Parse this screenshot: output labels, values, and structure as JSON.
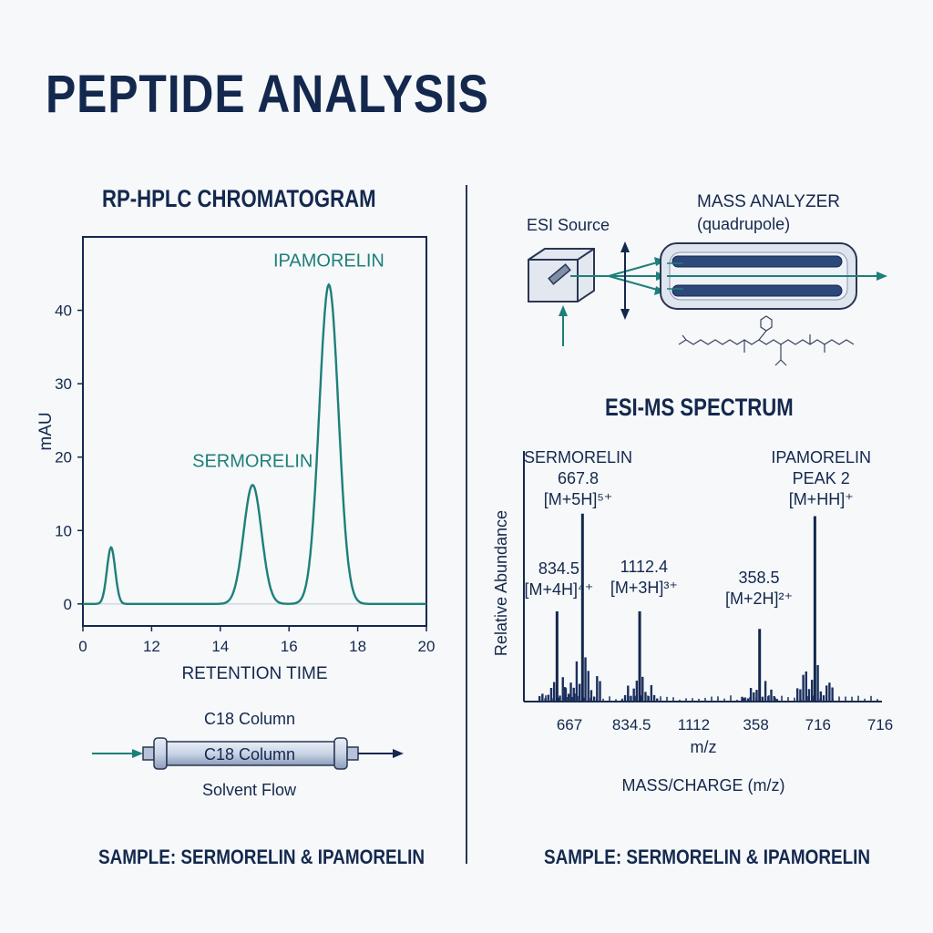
{
  "page": {
    "title": "PEPTIDE ANALYSIS"
  },
  "hplc": {
    "title": "RP-HPLC CHROMATOGRAM",
    "sample": "SAMPLE: SERMORELIN & IPAMORELIN",
    "column": {
      "top_label": "C18 Column",
      "body_label": "C18 Column",
      "flow_label": "Solvent Flow"
    }
  },
  "ms": {
    "title": "ESI-MS SPECTRUM",
    "sample": "SAMPLE: SERMORELIN & IPAMORELIN",
    "instrument": {
      "source_label": "ESI Source",
      "analyzer_label": "MASS ANALYZER",
      "analyzer_sub": "(quadrupole)"
    }
  },
  "chart_data": [
    {
      "type": "line",
      "title": "RP-HPLC CHROMATOGRAM",
      "xlabel": "RETENTION TIME",
      "ylabel": "mAU",
      "x_tick_labels": [
        "0",
        "12",
        "14",
        "16",
        "18",
        "20"
      ],
      "y_ticks": [
        0,
        10,
        20,
        30,
        40
      ],
      "ylim": [
        -3,
        50
      ],
      "grid": false,
      "peaks": [
        {
          "name": "",
          "x_index": 0.41,
          "height": 7.7,
          "width": 0.06
        },
        {
          "name": "SERMORELIN",
          "x_index": 2.47,
          "height": 16.2,
          "width": 0.13
        },
        {
          "name": "IPAMORELIN",
          "x_index": 3.58,
          "height": 43.5,
          "width": 0.14
        }
      ]
    },
    {
      "type": "bar",
      "title": "ESI-MS SPECTRUM",
      "xlabel": "m/z",
      "xlabel_secondary": "MASS/CHARGE (m/z)",
      "ylabel": "Relative Abundance",
      "x_tick_labels": [
        "667",
        "834.5",
        "1112",
        "358",
        "716",
        "716"
      ],
      "grid": false,
      "peak_labels": [
        {
          "lines": [
            "SERMORELIN",
            "667.8",
            "[M+5H]⁵⁺"
          ],
          "x_index": 0.14
        },
        {
          "lines": [
            "834.5",
            "[M+4H]⁴⁺"
          ],
          "x_index": -0.17
        },
        {
          "lines": [
            "1112.4",
            "[M+3H]³⁺"
          ],
          "x_index": 1.2
        },
        {
          "lines": [
            "358.5",
            "[M+2H]²⁺"
          ],
          "x_index": 3.05
        },
        {
          "lines": [
            "IPAMORELIN",
            "PEAK 2",
            "[M+HH]⁺"
          ],
          "x_index": 4.05
        }
      ],
      "major_peaks": [
        {
          "x_index": -0.2,
          "abundance": 0.36
        },
        {
          "x_index": 0.21,
          "abundance": 0.75
        },
        {
          "x_index": 1.13,
          "abundance": 0.36
        },
        {
          "x_index": 3.06,
          "abundance": 0.29
        },
        {
          "x_index": 3.95,
          "abundance": 0.74
        }
      ]
    }
  ]
}
